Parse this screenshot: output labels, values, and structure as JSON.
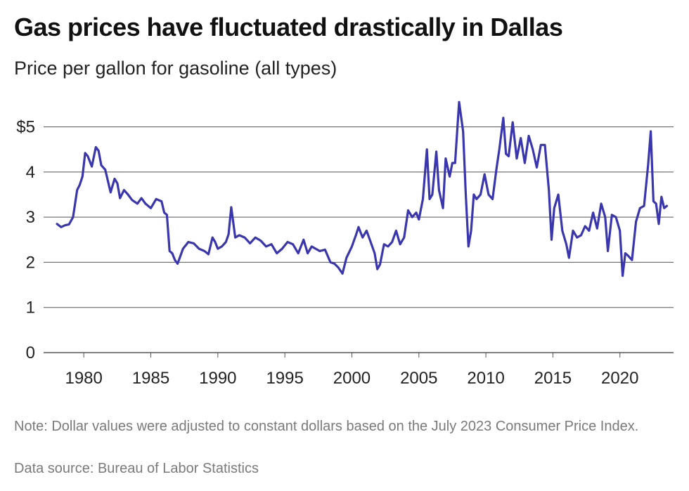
{
  "title": "Gas prices have fluctuated drastically in Dallas",
  "subtitle": "Price per gallon for gasoline (all types)",
  "note": "Note: Dollar values were adjusted to constant dollars based on the July 2023 Consumer Price Index.",
  "source": "Data source: Bureau of Labor Statistics",
  "colors": {
    "line": "#3a36ad",
    "grid": "#555555",
    "text": "#222222",
    "muted": "#7a7a7a"
  },
  "chart_data": {
    "type": "line",
    "title": "Gas prices have fluctuated drastically in Dallas",
    "subtitle": "Price per gallon for gasoline (all types)",
    "xlabel": "",
    "ylabel": "",
    "xlim": [
      1977,
      2024
    ],
    "ylim": [
      0,
      5.6
    ],
    "x_ticks": [
      1980,
      1985,
      1990,
      1995,
      2000,
      2005,
      2010,
      2015,
      2020
    ],
    "x_tick_labels": [
      "1980",
      "1985",
      "1990",
      "1995",
      "2000",
      "2005",
      "2010",
      "2015",
      "2020"
    ],
    "y_ticks": [
      0,
      1,
      2,
      3,
      4,
      5
    ],
    "y_tick_labels": [
      "0",
      "1",
      "2",
      "3",
      "4",
      "$5"
    ],
    "grid": "horizontal",
    "legend": "none",
    "series": [
      {
        "x": [
          1978.0,
          1978.3,
          1978.6,
          1978.9,
          1979.2,
          1979.5,
          1979.7,
          1979.9,
          1980.1,
          1980.3,
          1980.6,
          1980.9,
          1981.1,
          1981.3,
          1981.6,
          1982.0,
          1982.3,
          1982.5,
          1982.7,
          1983.0,
          1983.3,
          1983.6,
          1984.0,
          1984.3,
          1984.6,
          1985.0,
          1985.4,
          1985.8,
          1986.0,
          1986.2,
          1986.4,
          1986.6,
          1986.8,
          1987.0,
          1987.4,
          1987.8,
          1988.2,
          1988.6,
          1989.0,
          1989.3,
          1989.6,
          1989.8,
          1990.0,
          1990.3,
          1990.6,
          1990.8,
          1991.0,
          1991.3,
          1991.6,
          1992.0,
          1992.4,
          1992.8,
          1993.2,
          1993.6,
          1994.0,
          1994.4,
          1994.8,
          1995.2,
          1995.6,
          1996.0,
          1996.4,
          1996.7,
          1997.0,
          1997.3,
          1997.6,
          1998.0,
          1998.4,
          1998.7,
          1999.0,
          1999.3,
          1999.6,
          2000.0,
          2000.3,
          2000.5,
          2000.8,
          2001.1,
          2001.4,
          2001.7,
          2001.9,
          2002.1,
          2002.4,
          2002.7,
          2003.0,
          2003.3,
          2003.6,
          2003.9,
          2004.2,
          2004.5,
          2004.8,
          2005.0,
          2005.3,
          2005.6,
          2005.8,
          2006.0,
          2006.3,
          2006.5,
          2006.8,
          2007.0,
          2007.3,
          2007.5,
          2007.7,
          2008.0,
          2008.3,
          2008.5,
          2008.7,
          2008.9,
          2009.1,
          2009.3,
          2009.6,
          2009.9,
          2010.2,
          2010.5,
          2010.8,
          2011.0,
          2011.3,
          2011.5,
          2011.7,
          2012.0,
          2012.3,
          2012.6,
          2012.9,
          2013.2,
          2013.5,
          2013.8,
          2014.1,
          2014.4,
          2014.7,
          2014.9,
          2015.1,
          2015.4,
          2015.7,
          2016.0,
          2016.2,
          2016.5,
          2016.8,
          2017.1,
          2017.4,
          2017.7,
          2018.0,
          2018.3,
          2018.6,
          2018.9,
          2019.1,
          2019.4,
          2019.7,
          2020.0,
          2020.2,
          2020.4,
          2020.6,
          2020.9,
          2021.2,
          2021.5,
          2021.8,
          2022.1,
          2022.3,
          2022.5,
          2022.7,
          2022.9,
          2023.1,
          2023.3,
          2023.5
        ],
        "values": [
          2.85,
          2.78,
          2.82,
          2.84,
          3.0,
          3.6,
          3.72,
          3.9,
          4.42,
          4.35,
          4.12,
          4.55,
          4.47,
          4.15,
          4.05,
          3.55,
          3.85,
          3.75,
          3.42,
          3.6,
          3.5,
          3.38,
          3.3,
          3.42,
          3.3,
          3.2,
          3.4,
          3.35,
          3.1,
          3.05,
          2.25,
          2.2,
          2.05,
          1.97,
          2.3,
          2.45,
          2.42,
          2.3,
          2.25,
          2.18,
          2.55,
          2.45,
          2.3,
          2.35,
          2.45,
          2.62,
          3.22,
          2.55,
          2.6,
          2.55,
          2.42,
          2.55,
          2.48,
          2.35,
          2.4,
          2.2,
          2.3,
          2.45,
          2.4,
          2.2,
          2.5,
          2.2,
          2.35,
          2.3,
          2.25,
          2.28,
          2.0,
          1.97,
          1.88,
          1.75,
          2.1,
          2.35,
          2.6,
          2.78,
          2.55,
          2.7,
          2.45,
          2.2,
          1.85,
          1.95,
          2.4,
          2.35,
          2.45,
          2.7,
          2.4,
          2.55,
          3.15,
          3.0,
          3.1,
          2.95,
          3.4,
          4.5,
          3.4,
          3.5,
          4.45,
          3.6,
          3.2,
          4.3,
          3.9,
          4.2,
          4.2,
          5.55,
          4.9,
          3.5,
          2.35,
          2.7,
          3.5,
          3.4,
          3.5,
          3.95,
          3.5,
          3.4,
          4.1,
          4.5,
          5.2,
          4.4,
          4.35,
          5.1,
          4.3,
          4.75,
          4.2,
          4.8,
          4.5,
          4.1,
          4.6,
          4.6,
          3.6,
          2.5,
          3.2,
          3.5,
          2.7,
          2.4,
          2.1,
          2.7,
          2.55,
          2.6,
          2.8,
          2.7,
          3.1,
          2.75,
          3.3,
          3.0,
          2.25,
          3.05,
          3.0,
          2.7,
          1.7,
          2.2,
          2.15,
          2.05,
          2.9,
          3.2,
          3.25,
          4.15,
          4.9,
          3.35,
          3.3,
          2.85,
          3.45,
          3.2,
          3.25
        ]
      }
    ]
  }
}
